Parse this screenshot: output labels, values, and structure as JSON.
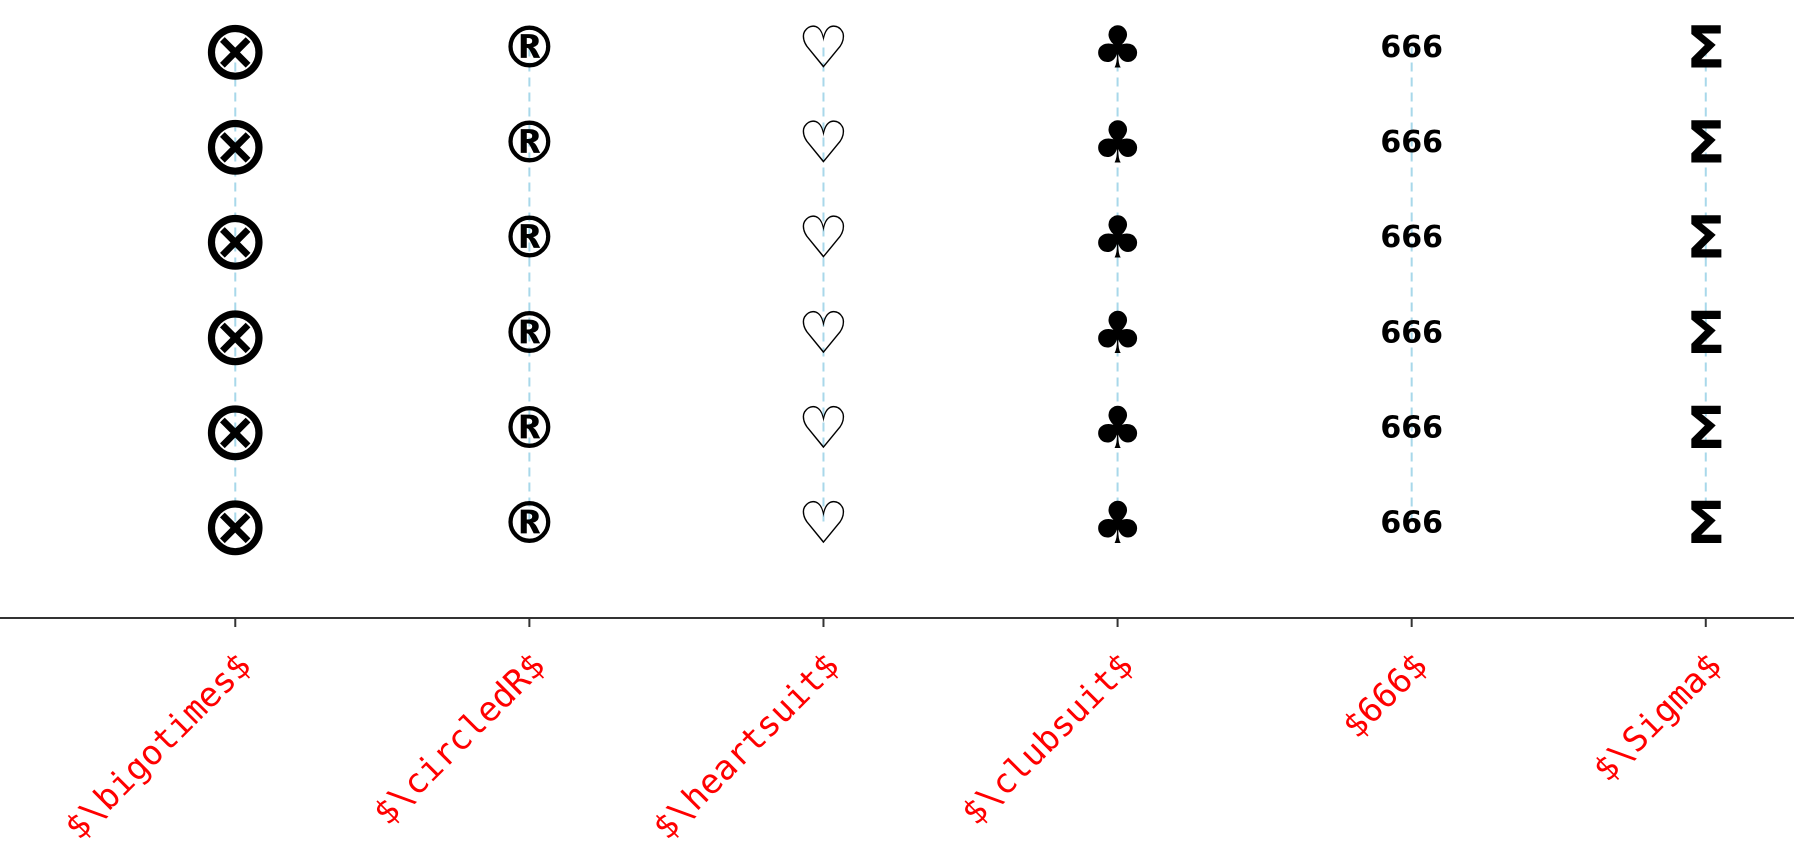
{
  "chart_data": {
    "type": "scatter",
    "title": "",
    "xlabel": "",
    "ylabel": "",
    "categories": [
      "$\\bigotimes$",
      "$\\circledR$",
      "$\\heartsuit$",
      "$\\clubsuit$",
      "$666$",
      "$\\Sigma$"
    ],
    "series": [
      {
        "marker_glyph": "⨂",
        "marker_icon": "circled-times-icon",
        "x": [
          0,
          0,
          0,
          0,
          0,
          0
        ],
        "y": [
          1,
          2,
          3,
          4,
          5,
          6
        ]
      },
      {
        "marker_glyph": "®",
        "marker_icon": "circled-r-icon",
        "x": [
          1,
          1,
          1,
          1,
          1,
          1
        ],
        "y": [
          1,
          2,
          3,
          4,
          5,
          6
        ]
      },
      {
        "marker_glyph": "♡",
        "marker_icon": "heart-outline-icon",
        "x": [
          2,
          2,
          2,
          2,
          2,
          2
        ],
        "y": [
          1,
          2,
          3,
          4,
          5,
          6
        ]
      },
      {
        "marker_glyph": "♣",
        "marker_icon": "club-icon",
        "x": [
          3,
          3,
          3,
          3,
          3,
          3
        ],
        "y": [
          1,
          2,
          3,
          4,
          5,
          6
        ]
      },
      {
        "marker_glyph": "666",
        "marker_icon": "text-666",
        "x": [
          4,
          4,
          4,
          4,
          4,
          4
        ],
        "y": [
          1,
          2,
          3,
          4,
          5,
          6
        ]
      },
      {
        "marker_glyph": "Σ",
        "marker_icon": "sigma-icon",
        "x": [
          5,
          5,
          5,
          5,
          5,
          5
        ],
        "y": [
          1,
          2,
          3,
          4,
          5,
          6
        ]
      }
    ],
    "xlim": [
      -0.8,
      5.3
    ],
    "ylim": [
      0,
      6.5
    ],
    "grid": false,
    "legend": "none",
    "colors": {
      "markers": "#000000",
      "stems": "#a8d8ea",
      "tick_labels": "#ff0000",
      "axis": "#333333"
    }
  }
}
